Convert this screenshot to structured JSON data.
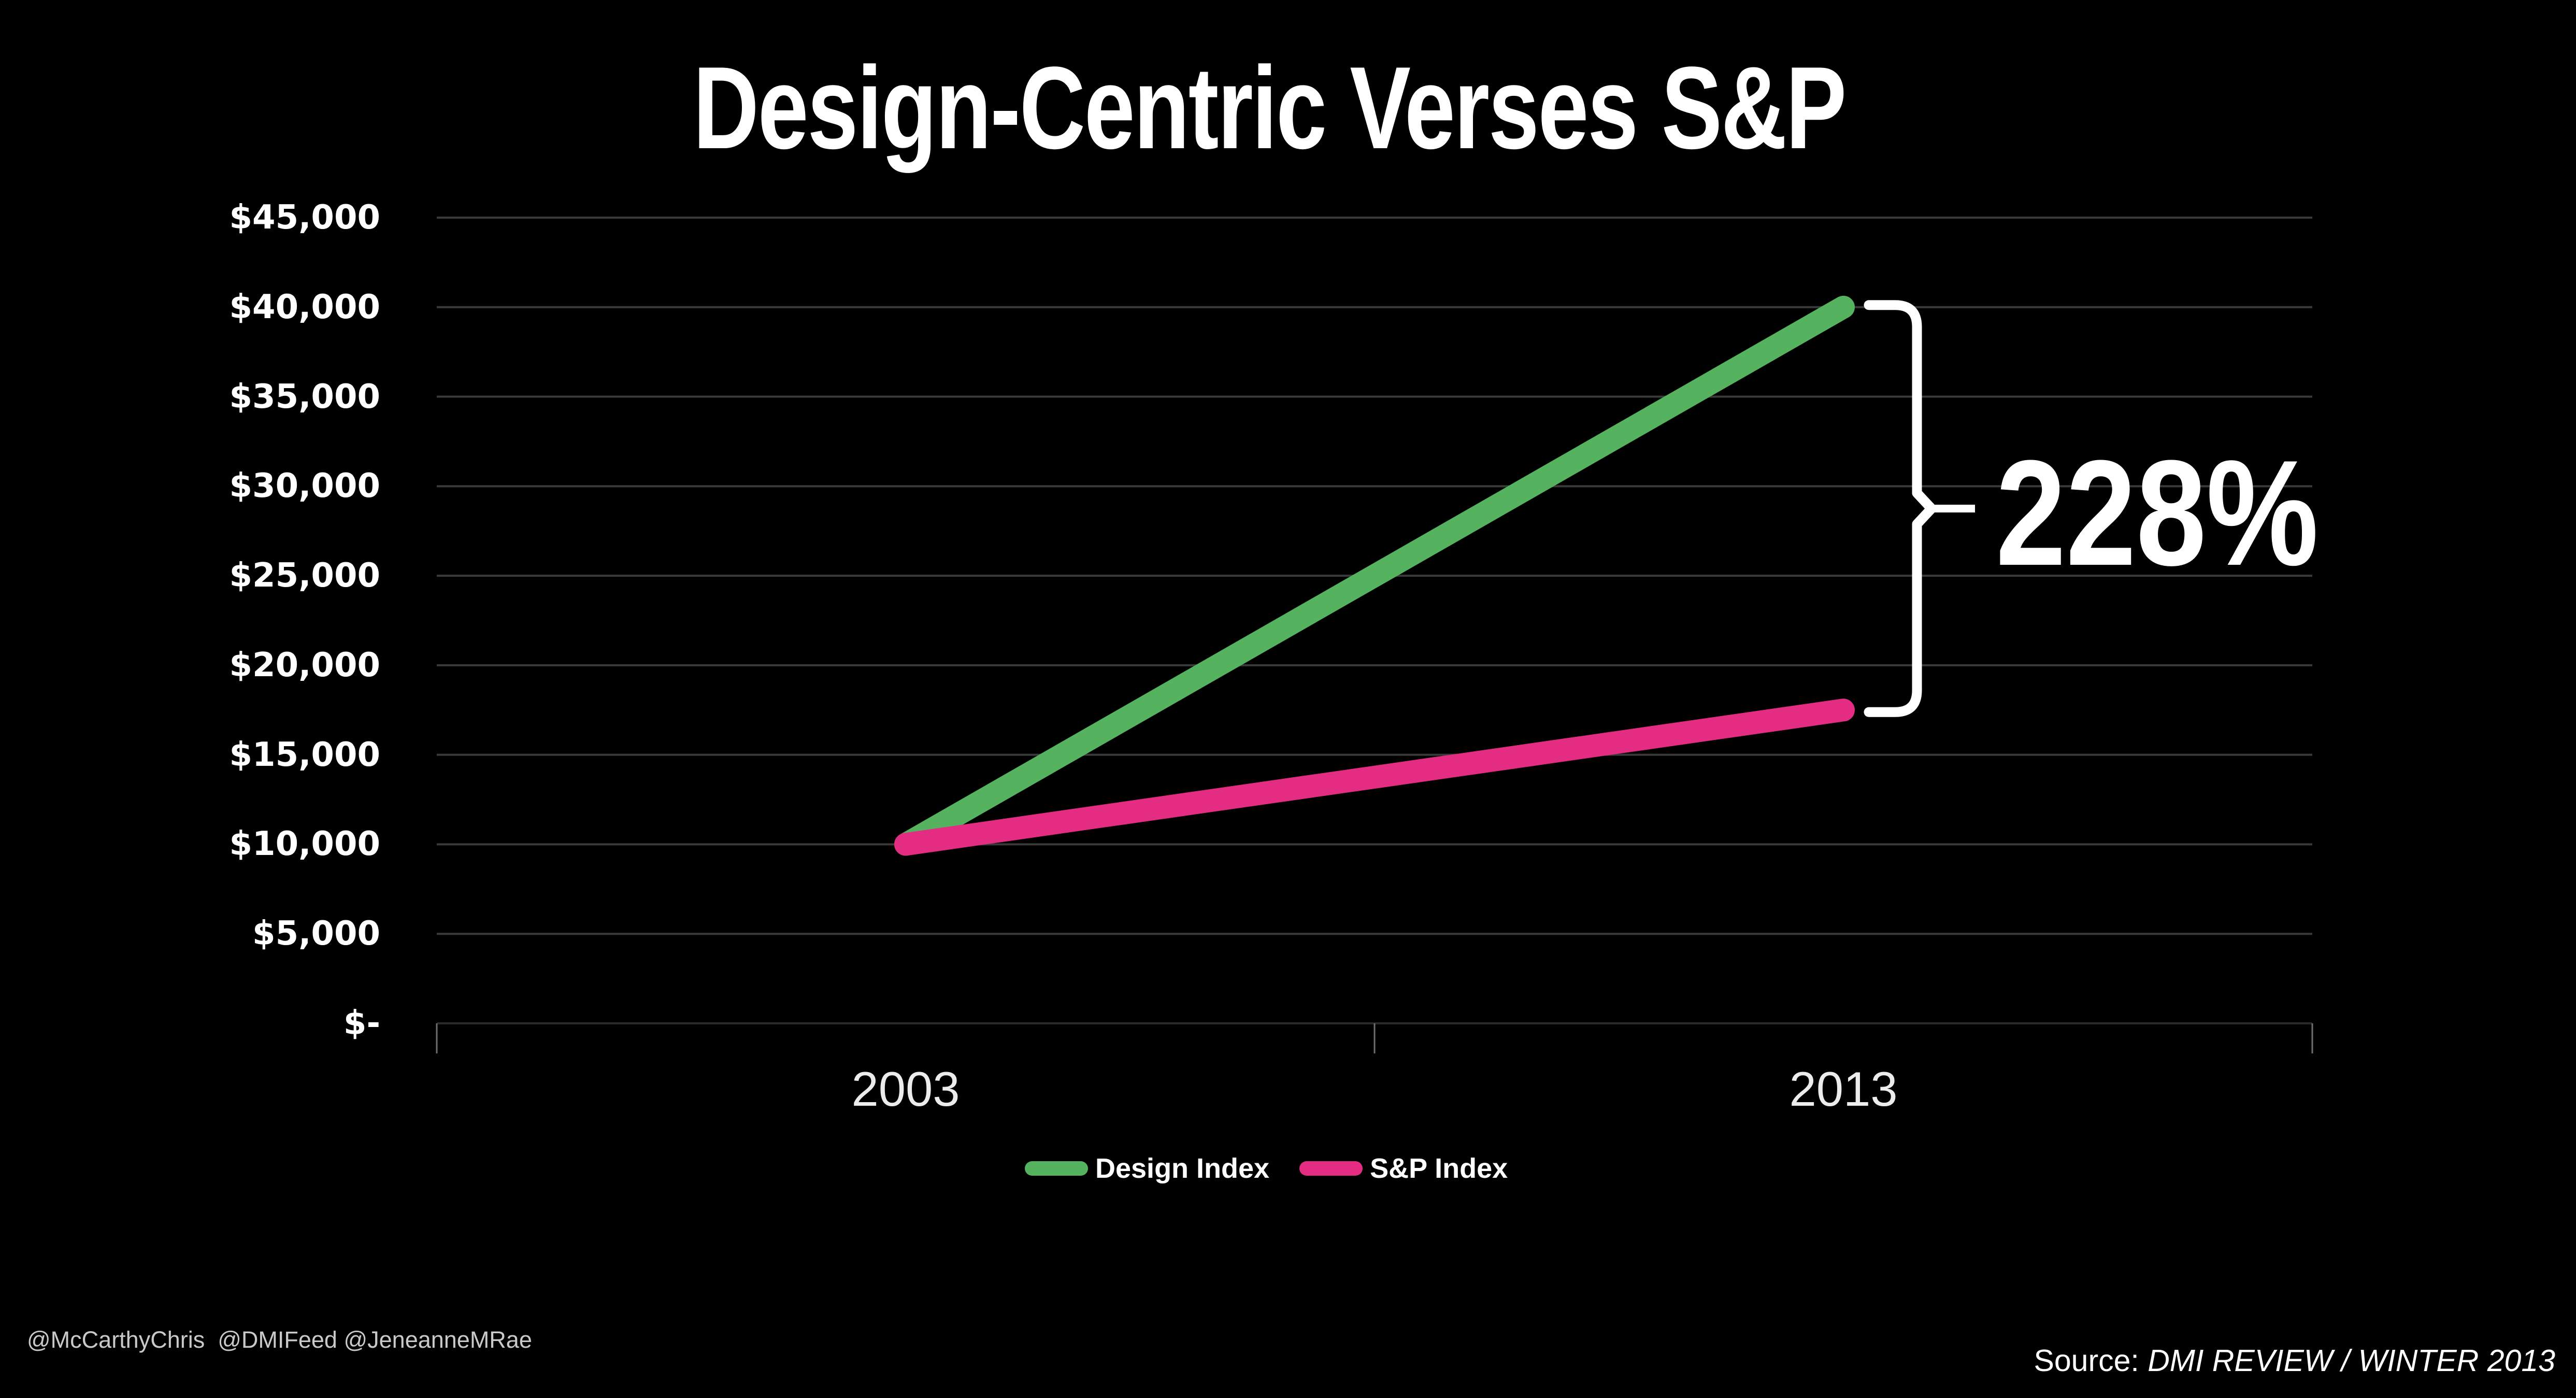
{
  "footer": {
    "handles": "@McCarthyChris  @DMIFeed @JeneanneMRae",
    "source_prefix": "Source: ",
    "source_citation": "DMI REVIEW / WINTER 2013"
  },
  "colors": {
    "background": "#000000",
    "design_index": "#55B25E",
    "sp_index": "#E32C82",
    "gridline": "#3A3A3A",
    "axis_line": "#2A2A2A",
    "text": "#FFFFFF",
    "annotation_bracket": "#FFFFFF"
  },
  "chart_data": {
    "type": "line",
    "title": "Design-Centric Verses S&P",
    "categories": [
      "2003",
      "2013"
    ],
    "series": [
      {
        "name": "Design Index",
        "color": "#55B25E",
        "values": [
          10000,
          40000
        ]
      },
      {
        "name": "S&P Index",
        "color": "#E32C82",
        "values": [
          10000,
          17500
        ]
      }
    ],
    "ylim": [
      0,
      45000
    ],
    "ytick_step": 5000,
    "ytick_labels": [
      "$-",
      "$5,000",
      "$10,000",
      "$15,000",
      "$20,000",
      "$25,000",
      "$30,000",
      "$35,000",
      "$40,000",
      "$45,000"
    ],
    "grid": true,
    "legend_position": "bottom",
    "annotation": {
      "label": "228%"
    }
  }
}
